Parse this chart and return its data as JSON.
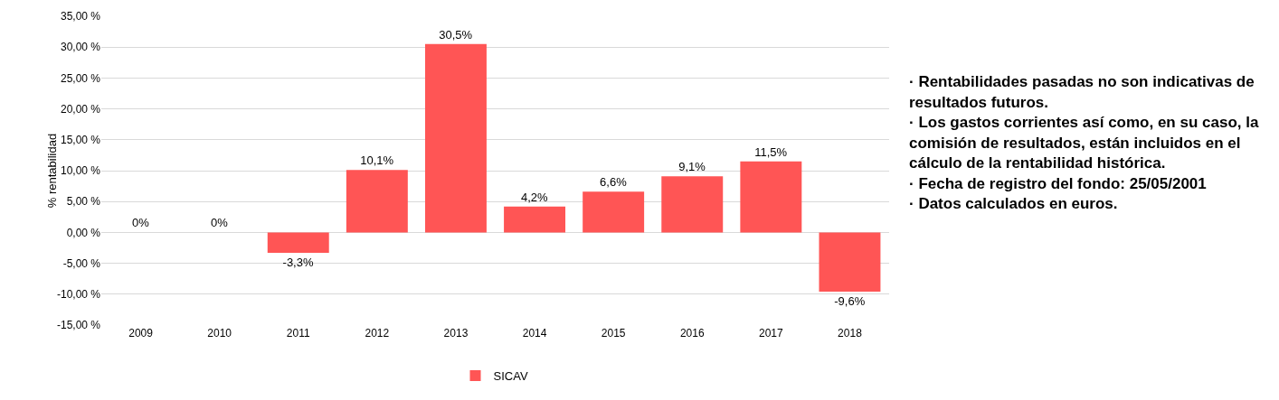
{
  "chart_data": {
    "type": "bar",
    "ylabel": "% rentabilidad",
    "categories": [
      "2009",
      "2010",
      "2011",
      "2012",
      "2013",
      "2014",
      "2015",
      "2016",
      "2017",
      "2018"
    ],
    "series": [
      {
        "name": "SICAV",
        "color": "#ff5555",
        "values": [
          0,
          0,
          -3.3,
          10.1,
          30.5,
          4.2,
          6.6,
          9.1,
          11.5,
          -9.6
        ],
        "value_labels": [
          "0%",
          "0%",
          "-3,3%",
          "10,1%",
          "30,5%",
          "4,2%",
          "6,6%",
          "9,1%",
          "11,5%",
          "-9,6%"
        ]
      }
    ],
    "ylim": [
      -15,
      35
    ],
    "yticks": [
      {
        "value": -15,
        "label": "-15,00 %"
      },
      {
        "value": -10,
        "label": "-10,00 %"
      },
      {
        "value": -5,
        "label": "-5,00 %"
      },
      {
        "value": 0,
        "label": "0,00 %"
      },
      {
        "value": 5,
        "label": "5,00 %"
      },
      {
        "value": 10,
        "label": "10,00 %"
      },
      {
        "value": 15,
        "label": "15,00 %"
      },
      {
        "value": 20,
        "label": "20,00 %"
      },
      {
        "value": 25,
        "label": "25,00 %"
      },
      {
        "value": 30,
        "label": "30,00 %"
      },
      {
        "value": 35,
        "label": "35,00 %"
      }
    ],
    "grid": "y",
    "legend": "bottom",
    "annotations": [
      "· Rentabilidades pasadas no son indicativas de resultados futuros.",
      "· Los gastos corrientes así como, en su caso, la comisión de resultados, están incluidos en el cálculo de la rentabilidad histórica.",
      "· Fecha de registro del fondo: 25/05/2001",
      "· Datos calculados en euros."
    ]
  }
}
